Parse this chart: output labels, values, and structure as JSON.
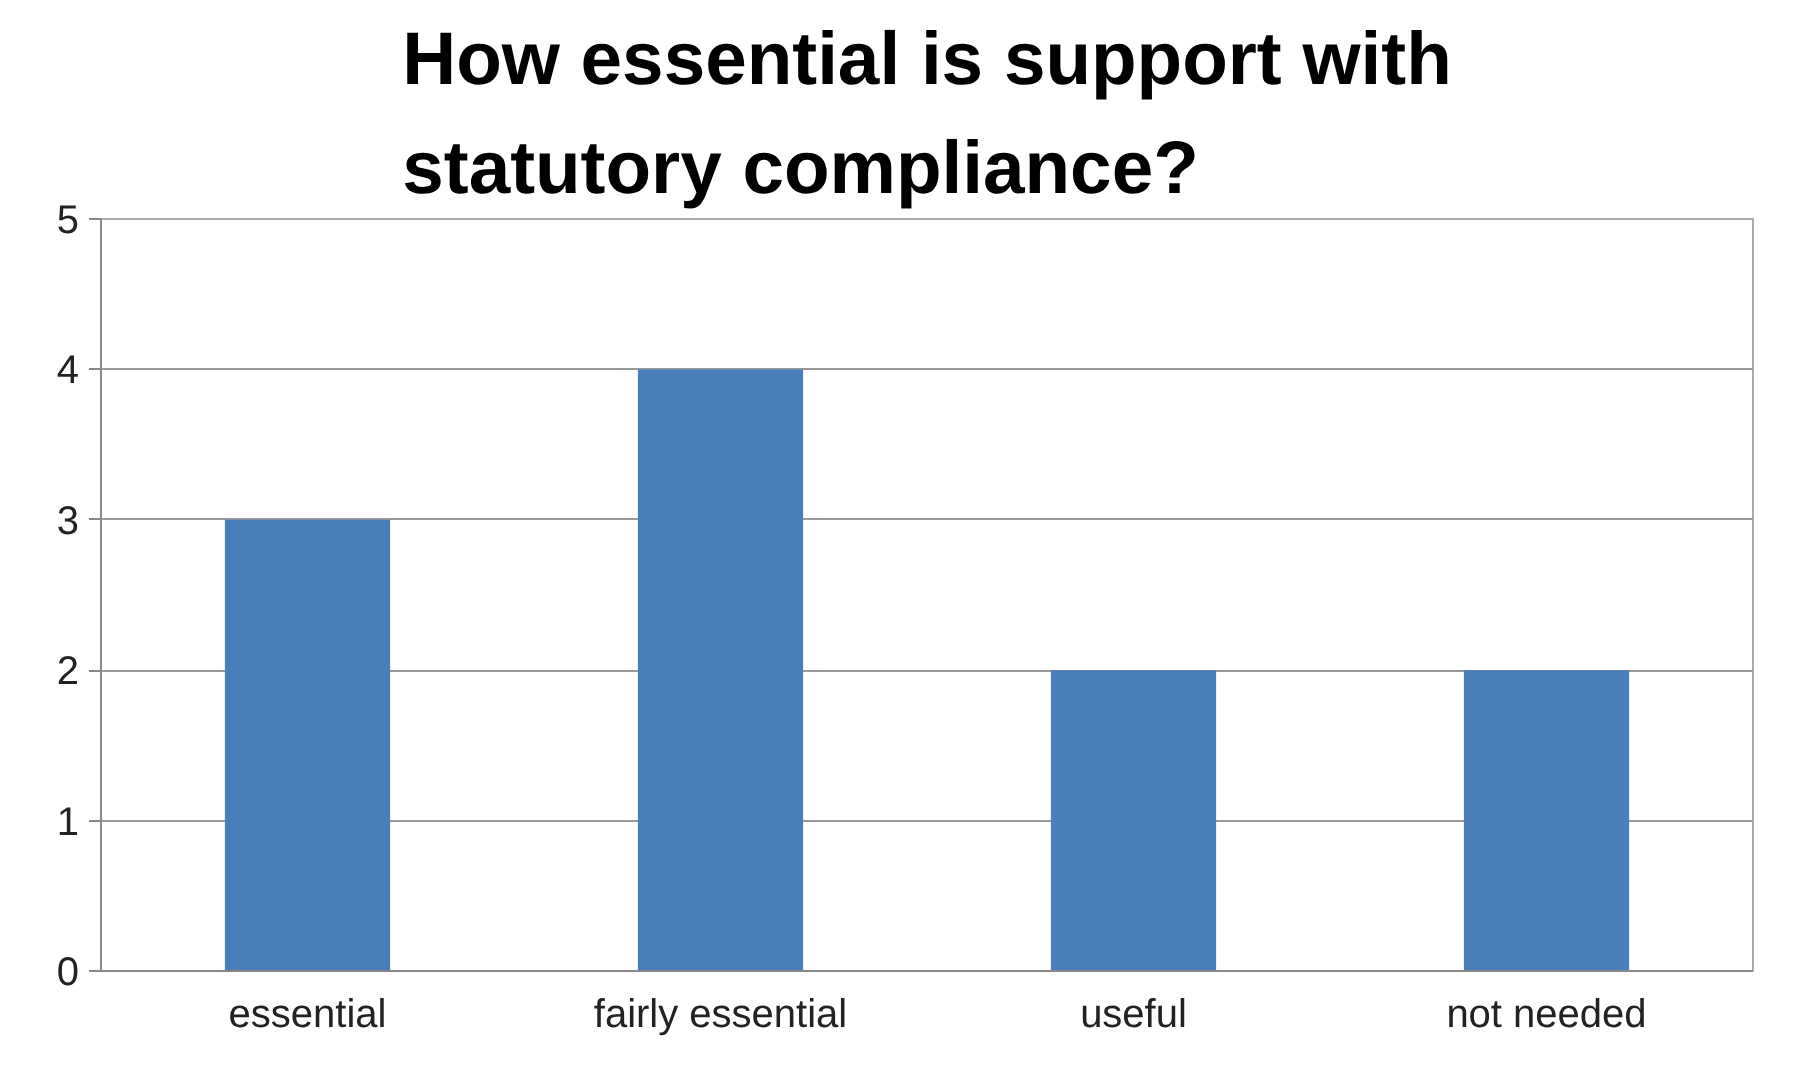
{
  "chart_data": {
    "type": "bar",
    "title": "How essential is support with statutory compliance?",
    "categories": [
      "essential",
      "fairly essential",
      "useful",
      "not needed"
    ],
    "values": [
      3,
      4,
      2,
      2
    ],
    "color": "#4a7ebb",
    "ylim": [
      0,
      5
    ],
    "yticks": [
      0,
      1,
      2,
      3,
      4,
      5
    ],
    "grid": "y"
  }
}
